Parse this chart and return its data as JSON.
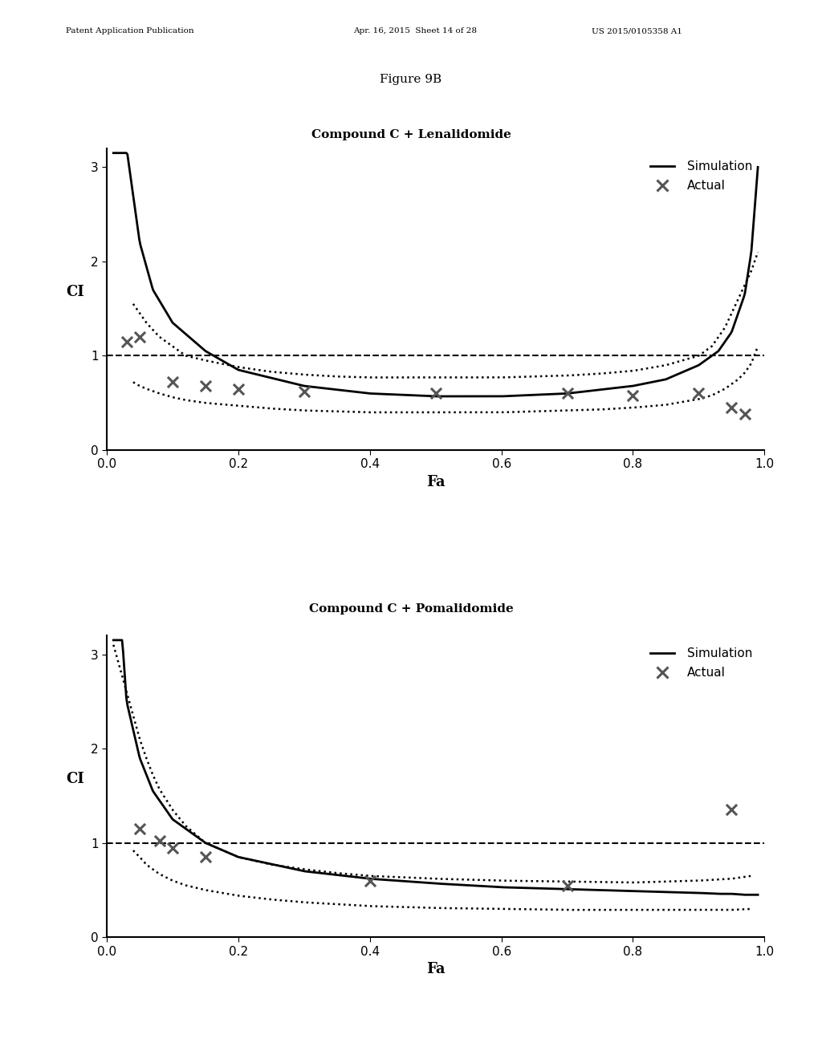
{
  "figure_label": "Figure 9B",
  "page_header_left": "Patent Application Publication",
  "page_header_mid": "Apr. 16, 2015  Sheet 14 of 28",
  "page_header_right": "US 2015/0105358 A1",
  "chart1": {
    "title": "Compound C + Lenalidomide",
    "xlabel": "Fa",
    "ylabel": "CI",
    "ylim": [
      0,
      3.2
    ],
    "xlim": [
      0.0,
      1.0
    ],
    "yticks": [
      0,
      1,
      2,
      3
    ],
    "xticks": [
      0.0,
      0.2,
      0.4,
      0.6,
      0.8,
      1.0
    ],
    "sim_x": [
      0.01,
      0.02,
      0.03,
      0.05,
      0.07,
      0.1,
      0.15,
      0.2,
      0.3,
      0.4,
      0.5,
      0.6,
      0.7,
      0.8,
      0.85,
      0.9,
      0.93,
      0.95,
      0.97,
      0.98,
      0.99
    ],
    "sim_y": [
      8.0,
      4.5,
      3.2,
      2.2,
      1.7,
      1.35,
      1.05,
      0.85,
      0.68,
      0.6,
      0.57,
      0.57,
      0.6,
      0.68,
      0.75,
      0.9,
      1.05,
      1.25,
      1.65,
      2.1,
      3.0
    ],
    "dot_upper_x": [
      0.04,
      0.05,
      0.06,
      0.08,
      0.1,
      0.12,
      0.15,
      0.2,
      0.25,
      0.3,
      0.35,
      0.4,
      0.45,
      0.5,
      0.55,
      0.6,
      0.65,
      0.7,
      0.75,
      0.8,
      0.85,
      0.9,
      0.92,
      0.94,
      0.96,
      0.97,
      0.98,
      0.99
    ],
    "dot_upper_y": [
      1.55,
      1.45,
      1.35,
      1.2,
      1.1,
      1.0,
      0.95,
      0.88,
      0.83,
      0.8,
      0.78,
      0.77,
      0.77,
      0.77,
      0.77,
      0.77,
      0.78,
      0.79,
      0.81,
      0.84,
      0.9,
      1.0,
      1.1,
      1.3,
      1.6,
      1.75,
      1.9,
      2.1
    ],
    "dot_lower_x": [
      0.04,
      0.05,
      0.06,
      0.08,
      0.1,
      0.12,
      0.15,
      0.2,
      0.25,
      0.3,
      0.35,
      0.4,
      0.45,
      0.5,
      0.55,
      0.6,
      0.65,
      0.7,
      0.75,
      0.8,
      0.85,
      0.9,
      0.92,
      0.94,
      0.96,
      0.97,
      0.98,
      0.99
    ],
    "dot_lower_y": [
      0.72,
      0.68,
      0.65,
      0.6,
      0.56,
      0.53,
      0.5,
      0.47,
      0.44,
      0.42,
      0.41,
      0.4,
      0.4,
      0.4,
      0.4,
      0.4,
      0.41,
      0.42,
      0.43,
      0.45,
      0.48,
      0.54,
      0.58,
      0.65,
      0.75,
      0.82,
      0.92,
      1.1
    ],
    "actual_x": [
      0.03,
      0.05,
      0.1,
      0.15,
      0.2,
      0.3,
      0.5,
      0.7,
      0.8,
      0.9,
      0.95,
      0.97
    ],
    "actual_y": [
      1.15,
      1.2,
      0.72,
      0.68,
      0.65,
      0.62,
      0.6,
      0.6,
      0.58,
      0.6,
      0.45,
      0.38
    ]
  },
  "chart2": {
    "title": "Compound C + Pomalidomide",
    "xlabel": "Fa",
    "ylabel": "CI",
    "ylim": [
      0,
      3.2
    ],
    "xlim": [
      0.0,
      1.0
    ],
    "yticks": [
      0,
      1,
      2,
      3
    ],
    "xticks": [
      0.0,
      0.2,
      0.4,
      0.6,
      0.8,
      1.0
    ],
    "sim_x": [
      0.01,
      0.02,
      0.03,
      0.05,
      0.07,
      0.1,
      0.15,
      0.2,
      0.3,
      0.4,
      0.5,
      0.6,
      0.7,
      0.8,
      0.85,
      0.9,
      0.93,
      0.95,
      0.97,
      0.98,
      0.99
    ],
    "sim_y": [
      5.0,
      3.5,
      2.5,
      1.9,
      1.55,
      1.25,
      1.0,
      0.85,
      0.7,
      0.62,
      0.57,
      0.53,
      0.51,
      0.49,
      0.48,
      0.47,
      0.46,
      0.46,
      0.45,
      0.45,
      0.45
    ],
    "dot_upper_x": [
      0.01,
      0.02,
      0.03,
      0.04,
      0.05,
      0.06,
      0.07,
      0.08,
      0.1,
      0.12,
      0.15,
      0.2,
      0.25,
      0.3,
      0.35,
      0.4,
      0.5,
      0.6,
      0.7,
      0.8,
      0.9,
      0.95,
      0.98
    ],
    "dot_upper_y": [
      3.1,
      2.85,
      2.6,
      2.35,
      2.1,
      1.9,
      1.72,
      1.57,
      1.35,
      1.18,
      1.0,
      0.85,
      0.77,
      0.72,
      0.68,
      0.65,
      0.62,
      0.6,
      0.59,
      0.58,
      0.6,
      0.62,
      0.65
    ],
    "dot_lower_x": [
      0.04,
      0.05,
      0.06,
      0.07,
      0.08,
      0.1,
      0.12,
      0.15,
      0.2,
      0.25,
      0.3,
      0.35,
      0.4,
      0.5,
      0.6,
      0.7,
      0.8,
      0.9,
      0.95,
      0.98
    ],
    "dot_lower_y": [
      0.92,
      0.85,
      0.77,
      0.72,
      0.67,
      0.6,
      0.55,
      0.5,
      0.44,
      0.4,
      0.37,
      0.35,
      0.33,
      0.31,
      0.3,
      0.29,
      0.29,
      0.29,
      0.29,
      0.3
    ],
    "actual_x": [
      0.05,
      0.08,
      0.1,
      0.15,
      0.4,
      0.7,
      0.95
    ],
    "actual_y": [
      1.15,
      1.02,
      0.95,
      0.85,
      0.6,
      0.55,
      1.35
    ]
  },
  "colors": {
    "simulation": "#000000",
    "dots": "#000000",
    "actual": "#555555",
    "dashed": "#000000",
    "background": "#ffffff"
  }
}
